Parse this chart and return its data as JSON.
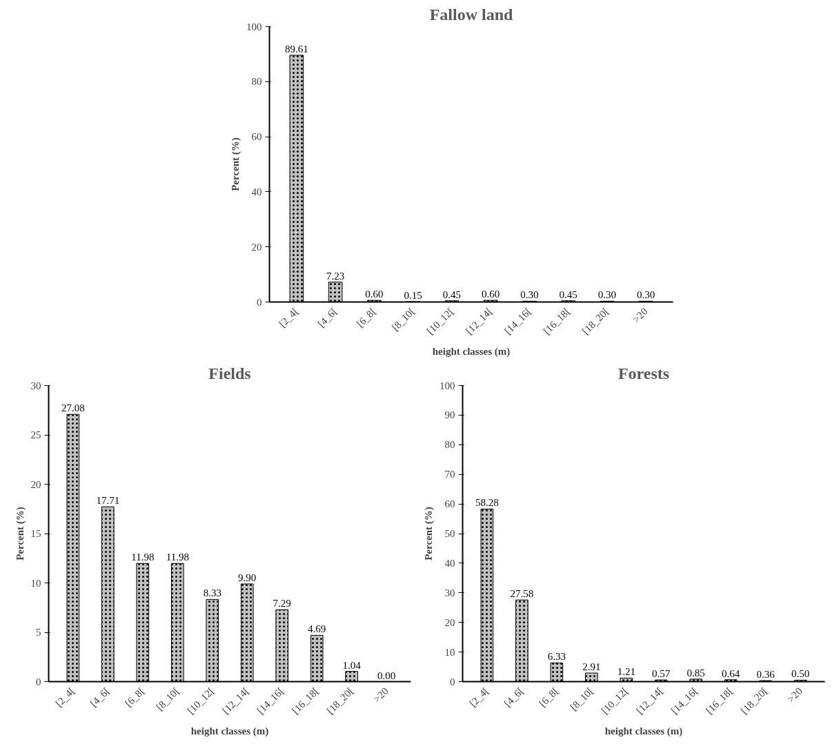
{
  "chart_data": [
    {
      "type": "bar",
      "title": "Fallow land",
      "xlabel": "height classes (m)",
      "ylabel": "Percent (%)",
      "categories": [
        "[2_4[",
        "[4_6[",
        "[6_8[",
        "[8_10[",
        "[10_12[",
        "[12_14[",
        "[14_16[",
        "[16_18[",
        "[18_20[",
        ">20"
      ],
      "values": [
        89.61,
        7.23,
        0.6,
        0.15,
        0.45,
        0.6,
        0.3,
        0.45,
        0.3,
        0.3
      ],
      "value_labels": [
        "89.61",
        "7.23",
        "0.60",
        "0.15",
        "0.45",
        "0.60",
        "0.30",
        "0.45",
        "0.30",
        "0.30"
      ],
      "color": "#c0c0c0",
      "ylim": [
        0,
        100
      ],
      "yticks": [
        0,
        20,
        40,
        60,
        80,
        100
      ],
      "grid": false
    },
    {
      "type": "bar",
      "title": "Fields",
      "xlabel": "height classes (m)",
      "ylabel": "Percent (%)",
      "categories": [
        "[2_4[",
        "[4_6[",
        "[6_8[",
        "[8_10[",
        "[10_12[",
        "[12_14[",
        "[14_16[",
        "[16_18[",
        "[18_20[",
        ">20"
      ],
      "values": [
        27.08,
        17.71,
        11.98,
        11.98,
        8.33,
        9.9,
        7.29,
        4.69,
        1.04,
        0.0
      ],
      "value_labels": [
        "27.08",
        "17.71",
        "11.98",
        "11.98",
        "8.33",
        "9.90",
        "7.29",
        "4.69",
        "1.04",
        "0.00"
      ],
      "color": "#c0c0c0",
      "ylim": [
        0,
        30
      ],
      "yticks": [
        0,
        5,
        10,
        15,
        20,
        25,
        30
      ],
      "grid": false
    },
    {
      "type": "bar",
      "title": "Forests",
      "xlabel": "height classes (m)",
      "ylabel": "Percent (%)",
      "categories": [
        "[2_4[",
        "[4_6[",
        "[6_8[",
        "[8_10[",
        "[10_12[",
        "[12_14[",
        "[14_16[",
        "[16_18[",
        "[18_20[",
        ">20"
      ],
      "values": [
        58.28,
        27.58,
        6.33,
        2.91,
        1.21,
        0.57,
        0.85,
        0.64,
        0.36,
        0.5
      ],
      "value_labels": [
        "58.28",
        "27.58",
        "6.33",
        "2.91",
        "1.21",
        "0.57",
        "0.85",
        "0.64",
        "0.36",
        "0.50"
      ],
      "color": "#c0c0c0",
      "ylim": [
        0,
        100
      ],
      "yticks": [
        0,
        10,
        20,
        30,
        40,
        50,
        60,
        70,
        80,
        90,
        100
      ],
      "grid": false
    }
  ]
}
